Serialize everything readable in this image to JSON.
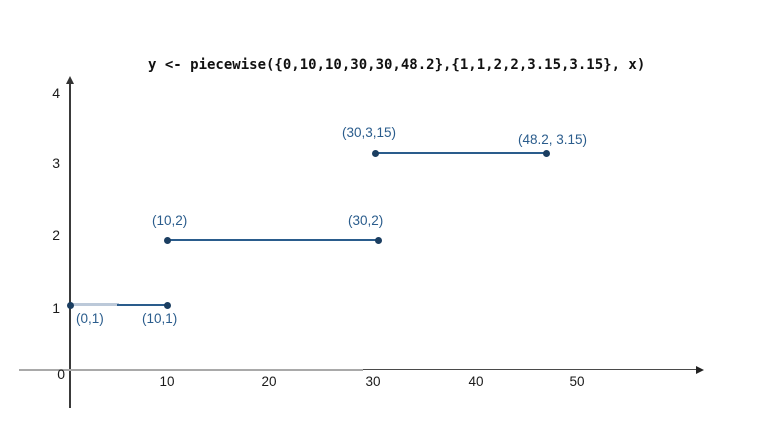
{
  "title": "y <- piecewise({0,10,10,30,30,48.2},{1,1,2,2,3.15,3.15}, x)",
  "colors": {
    "background": "#ffffff",
    "series_line": "#2a5c8c",
    "series_point": "#1b3e61",
    "point_label": "#2a5c8c",
    "segment_highlight": "#bcc9d9",
    "axis_gray": "#a9a9a9",
    "axis_dark": "#3a3a3a",
    "tick_text": "#1a1a1a"
  },
  "chart_data": {
    "type": "line",
    "subtype": "piecewise-constant-segments",
    "title": "y <- piecewise({0,10,10,30,30,48.2},{1,1,2,2,3.15,3.15}, x)",
    "xlabel": "",
    "ylabel": "",
    "xlim": [
      -5,
      62
    ],
    "ylim": [
      0,
      4.2
    ],
    "grid": false,
    "legend": "none",
    "x_tick_labels": [
      "0",
      "10",
      "20",
      "30",
      "40",
      "50"
    ],
    "y_tick_labels": [
      "4",
      "3",
      "2",
      "1"
    ],
    "segments": [
      {
        "x1": 0,
        "y1": 1,
        "x2": 10,
        "y2": 1
      },
      {
        "x1": 10,
        "y1": 2,
        "x2": 30,
        "y2": 2
      },
      {
        "x1": 30,
        "y1": 3.15,
        "x2": 48.2,
        "y2": 3.15
      }
    ],
    "points": [
      {
        "x": 0,
        "y": 1,
        "label": "(0,1)",
        "label_position": "below-right"
      },
      {
        "x": 10,
        "y": 1,
        "label": "(10,1)",
        "label_position": "below"
      },
      {
        "x": 10,
        "y": 2,
        "label": "(10,2)",
        "label_position": "above"
      },
      {
        "x": 30,
        "y": 2,
        "label": "(30,2)",
        "label_position": "above"
      },
      {
        "x": 30,
        "y": 3.15,
        "label": "(30,3,15)",
        "label_position": "above"
      },
      {
        "x": 48.2,
        "y": 3.15,
        "label": "(48.2, 3.15)",
        "label_position": "above"
      }
    ]
  }
}
